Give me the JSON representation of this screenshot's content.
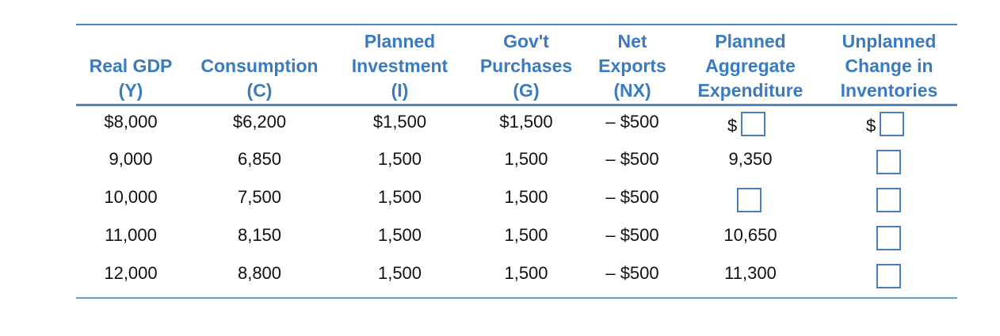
{
  "headers": [
    {
      "lines": [
        "Real GDP",
        "(Y)"
      ]
    },
    {
      "lines": [
        "Consumption",
        "(C)"
      ]
    },
    {
      "lines": [
        "Planned",
        "Investment",
        "(I)"
      ]
    },
    {
      "lines": [
        "Gov't",
        "Purchases",
        "(G)"
      ]
    },
    {
      "lines": [
        "Net",
        "Exports",
        "(NX)"
      ]
    },
    {
      "lines": [
        "Planned",
        "Aggregate",
        "Expenditure"
      ]
    },
    {
      "lines": [
        "Unplanned",
        "Change in",
        "Inventories"
      ]
    }
  ],
  "rows": [
    {
      "gdp": "$8,000",
      "consumption": "$6,200",
      "investment": "$1,500",
      "gov": "$1,500",
      "nx": "– $500",
      "pae": "$",
      "uci": "$"
    },
    {
      "gdp": "9,000",
      "consumption": "6,850",
      "investment": "1,500",
      "gov": "1,500",
      "nx": "– $500",
      "pae": "9,350",
      "uci": ""
    },
    {
      "gdp": "10,000",
      "consumption": "7,500",
      "investment": "1,500",
      "gov": "1,500",
      "nx": "– $500",
      "pae": "",
      "uci": ""
    },
    {
      "gdp": "11,000",
      "consumption": "8,150",
      "investment": "1,500",
      "gov": "1,500",
      "nx": "– $500",
      "pae": "10,650",
      "uci": ""
    },
    {
      "gdp": "12,000",
      "consumption": "8,800",
      "investment": "1,500",
      "gov": "1,500",
      "nx": "– $500",
      "pae": "11,300",
      "uci": ""
    }
  ],
  "colors": {
    "header_text": "#3a7bbf",
    "rule": "#4a86c5",
    "input_border": "#4a7fc4"
  }
}
